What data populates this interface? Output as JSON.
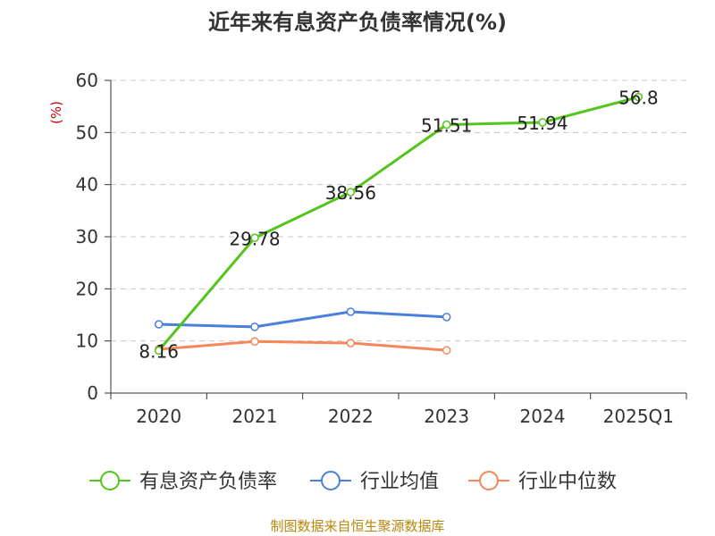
{
  "chart_data": {
    "type": "line",
    "title": "近年来有息资产负债率情况(%)",
    "ylabel": "(%)",
    "xlabel": "",
    "categories": [
      "2020",
      "2021",
      "2022",
      "2023",
      "2024",
      "2025Q1"
    ],
    "ylim": [
      0,
      60
    ],
    "yticks": [
      0,
      10,
      20,
      30,
      40,
      50,
      60
    ],
    "grid": true,
    "legend_position": "bottom",
    "series": [
      {
        "name": "有息资产负债率",
        "color": "#52c41a",
        "values": [
          8.16,
          29.78,
          38.56,
          51.51,
          51.94,
          56.8
        ],
        "labels": [
          "8.16",
          "29.78",
          "38.56",
          "51.51",
          "51.94",
          "56.8"
        ]
      },
      {
        "name": "行业均值",
        "color": "#4a7fdc",
        "values": [
          13.2,
          12.7,
          15.6,
          14.6,
          null,
          null
        ]
      },
      {
        "name": "行业中位数",
        "color": "#f5875a",
        "values": [
          8.4,
          9.9,
          9.6,
          8.2,
          null,
          null
        ]
      }
    ]
  },
  "footer": {
    "source": "制图数据来自恒生聚源数据库"
  }
}
